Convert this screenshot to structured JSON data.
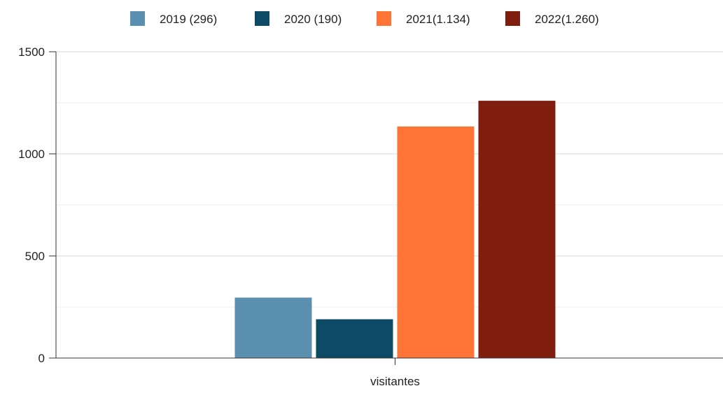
{
  "chart_data": {
    "type": "bar",
    "categories": [
      "visitantes"
    ],
    "series": [
      {
        "name": "2019 (296)",
        "values": [
          296
        ],
        "color": "#5b8fb0"
      },
      {
        "name": "2020 (190)",
        "values": [
          190
        ],
        "color": "#0d4a66"
      },
      {
        "name": "2021(1.134)",
        "values": [
          1134
        ],
        "color": "#fe7336"
      },
      {
        "name": "2022(1.260)",
        "values": [
          1260
        ],
        "color": "#7f1e0e"
      }
    ],
    "yticks": [
      "0",
      "500",
      "1000",
      "1500"
    ],
    "ylim": [
      0,
      1500
    ],
    "grid": true,
    "legend_position": "top"
  }
}
